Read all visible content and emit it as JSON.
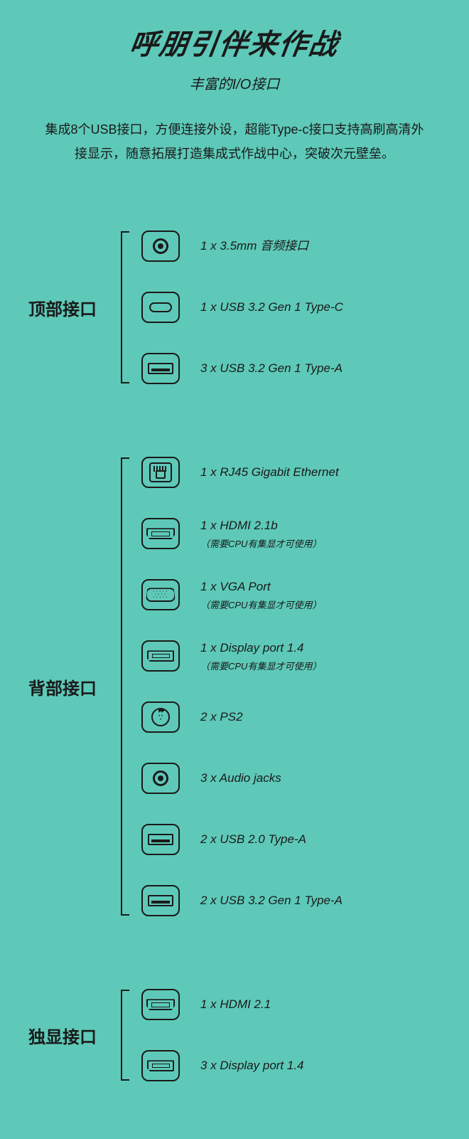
{
  "colors": {
    "background": "#5ec9b8",
    "text": "#1a1a1a",
    "icon_stroke": "#1a1a1a"
  },
  "typography": {
    "headline_fontsize": 40,
    "headline_weight": 900,
    "headline_italic": true,
    "subtitle_fontsize": 20,
    "subtitle_italic": true,
    "intro_fontsize": 18,
    "section_label_fontsize": 24,
    "section_label_weight": 700,
    "port_label_fontsize": 17,
    "port_label_italic": true,
    "port_note_fontsize": 13,
    "port_note_italic": true
  },
  "headline": "呼朋引伴来作战",
  "subtitle": "丰富的I/O接口",
  "intro": "集成8个USB接口，方便连接外设，超能Type-c接口支持高刷高清外接显示，随意拓展打造集成式作战中心，突破次元壁垒。",
  "sections": [
    {
      "label": "顶部接口",
      "ports": [
        {
          "icon": "audio",
          "label": "1 x 3.5mm 音频接口"
        },
        {
          "icon": "typec",
          "label": "1 x USB 3.2 Gen 1 Type-C"
        },
        {
          "icon": "typea",
          "label": "3 x USB 3.2 Gen 1 Type-A"
        }
      ]
    },
    {
      "label": "背部接口",
      "ports": [
        {
          "icon": "rj45",
          "label": "1 x RJ45 Gigabit Ethernet"
        },
        {
          "icon": "hdmi",
          "label": "1 x HDMI 2.1b",
          "note": "（需要CPU有集显才可使用）"
        },
        {
          "icon": "vga",
          "label": "1 x VGA Port",
          "note": "（需要CPU有集显才可使用）"
        },
        {
          "icon": "dp",
          "label": "1 x Display port 1.4",
          "note": "（需要CPU有集显才可使用）"
        },
        {
          "icon": "ps2",
          "label": "2 x PS2"
        },
        {
          "icon": "audio",
          "label": "3 x Audio jacks"
        },
        {
          "icon": "typea",
          "label": "2 x USB 2.0 Type-A"
        },
        {
          "icon": "typea",
          "label": "2 x USB 3.2 Gen 1 Type-A"
        }
      ]
    },
    {
      "label": "独显接口",
      "ports": [
        {
          "icon": "hdmi",
          "label": "1 x HDMI 2.1"
        },
        {
          "icon": "dp",
          "label": "3 x Display port 1.4"
        }
      ]
    }
  ]
}
